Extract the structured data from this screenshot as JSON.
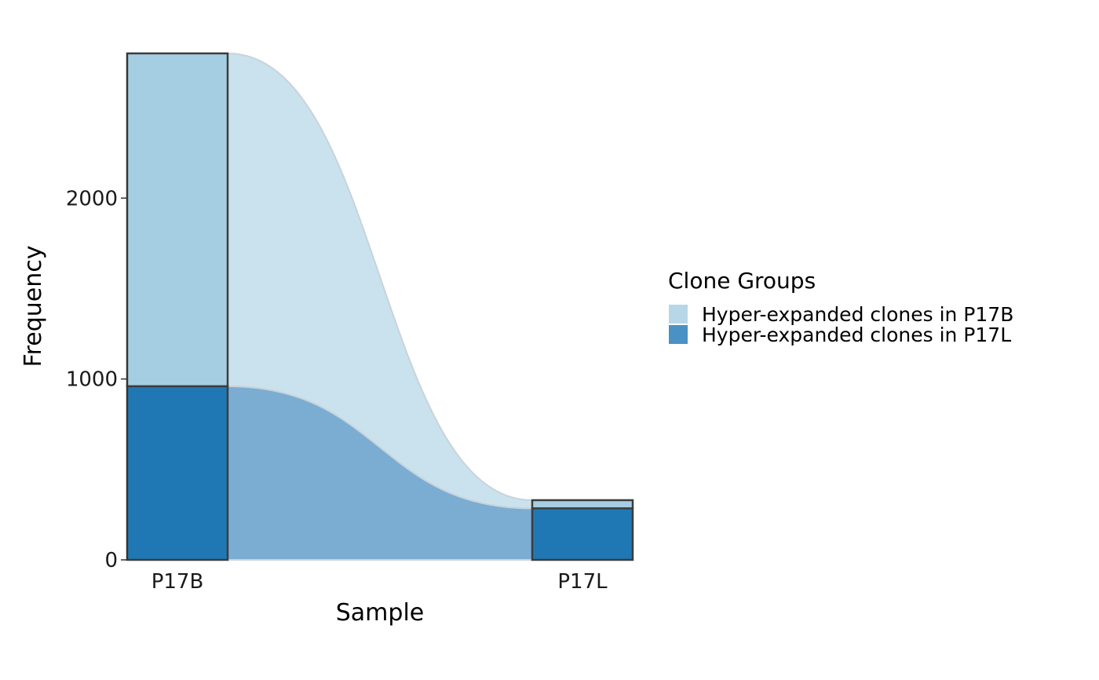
{
  "chart_data": {
    "type": "bar",
    "subtype": "stacked alluvial",
    "xlabel": "Sample",
    "ylabel": "Frequency",
    "categories": [
      "P17B",
      "P17L"
    ],
    "ylim": [
      0,
      2800
    ],
    "yticks": [
      0,
      1000,
      2000
    ],
    "series": [
      {
        "name": "Hyper-expanded clones in P17L",
        "values": [
          960,
          285
        ],
        "color": "#1f78b4",
        "flow_color": "#7badd3"
      },
      {
        "name": "Hyper-expanded clones in P17B",
        "values": [
          1840,
          45
        ],
        "color": "#a6cee3",
        "flow_color": "#cae2ee"
      }
    ],
    "legend": {
      "title": "Clone Groups",
      "position": "right",
      "entries": [
        {
          "label": "Hyper-expanded clones in P17B",
          "color": "#b7d7e8"
        },
        {
          "label": "Hyper-expanded clones in P17L",
          "color": "#4a91c4"
        }
      ]
    },
    "grid": false
  }
}
